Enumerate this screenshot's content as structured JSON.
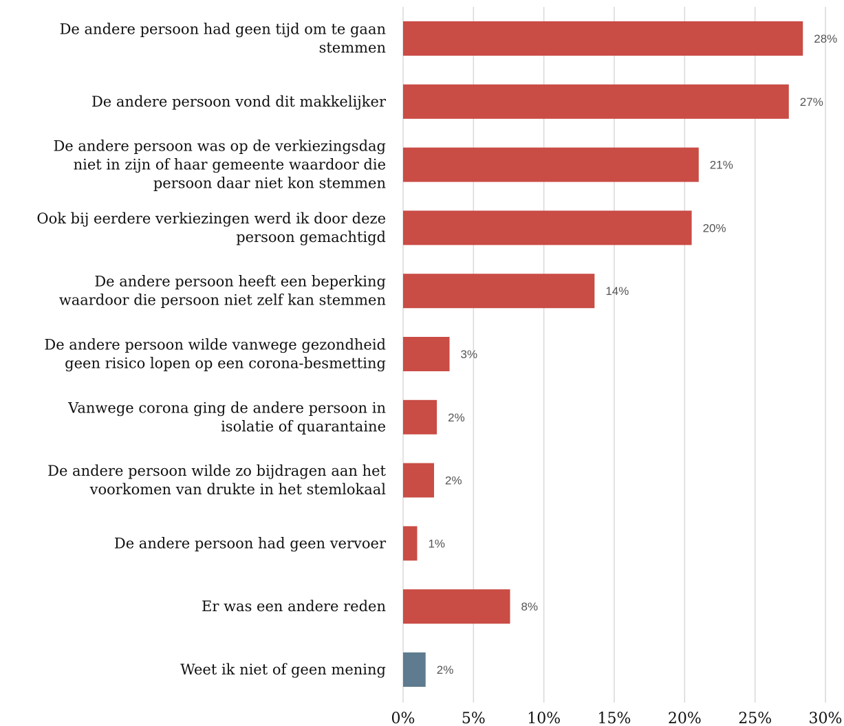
{
  "chart_data": {
    "type": "bar",
    "orientation": "horizontal",
    "title": "",
    "xlabel": "",
    "ylabel": "",
    "xlim": [
      0,
      30
    ],
    "x_ticks": [
      0,
      5,
      10,
      15,
      20,
      25,
      30
    ],
    "x_tick_labels": [
      "0%",
      "5%",
      "10%",
      "15%",
      "20%",
      "25%",
      "30%"
    ],
    "grid": "vertical",
    "legend": "none",
    "categories": [
      [
        "De andere persoon had geen tijd om te gaan",
        "stemmen"
      ],
      [
        "De andere persoon vond dit makkelijker"
      ],
      [
        "De andere persoon was op de verkiezingsdag",
        "niet in zijn of haar gemeente waardoor die",
        "persoon daar niet kon stemmen"
      ],
      [
        "Ook bij eerdere verkiezingen werd ik door deze",
        "persoon gemachtigd"
      ],
      [
        "De andere persoon heeft een beperking",
        "waardoor die persoon niet zelf kan stemmen"
      ],
      [
        "De andere persoon wilde vanwege gezondheid",
        "geen risico lopen op een corona-besmetting"
      ],
      [
        "Vanwege corona ging de andere persoon in",
        "isolatie of quarantaine"
      ],
      [
        "De andere persoon wilde zo bijdragen aan het",
        "voorkomen van drukte in het stemlokaal"
      ],
      [
        "De andere persoon had geen vervoer"
      ],
      [
        "Er was een andere reden"
      ],
      [
        "Weet ik niet of geen mening"
      ]
    ],
    "values": [
      28.4,
      27.4,
      21.0,
      20.5,
      13.6,
      3.3,
      2.4,
      2.2,
      1.0,
      7.6,
      1.6
    ],
    "value_labels": [
      "28%",
      "27%",
      "21%",
      "20%",
      "14%",
      "3%",
      "2%",
      "2%",
      "1%",
      "8%",
      "2%"
    ],
    "bar_colors": [
      "#c94c45",
      "#c94c45",
      "#c94c45",
      "#c94c45",
      "#c94c45",
      "#c94c45",
      "#c94c45",
      "#c94c45",
      "#c94c45",
      "#c94c45",
      "#5f7b8f"
    ]
  }
}
